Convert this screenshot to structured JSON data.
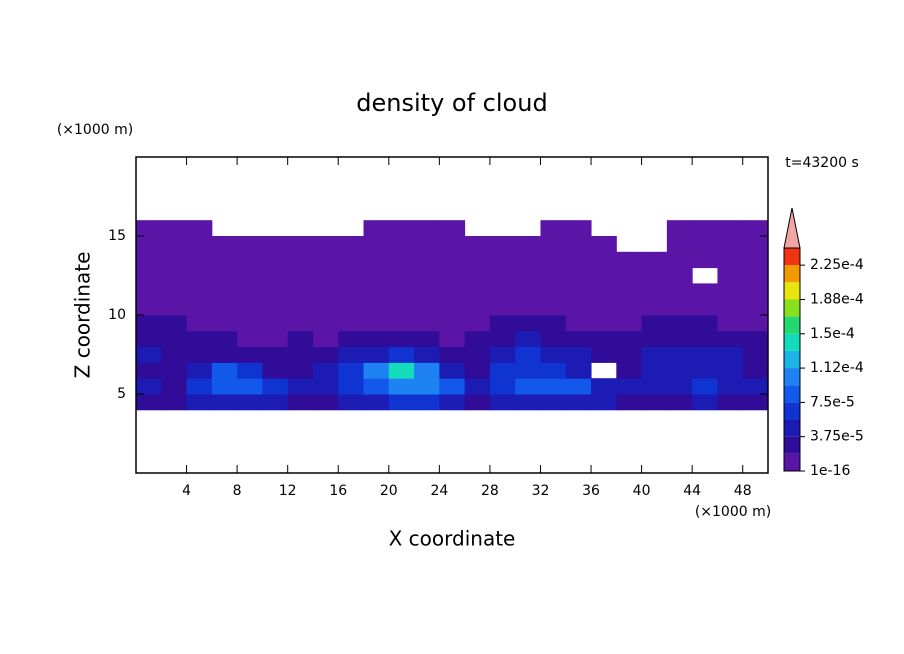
{
  "chart_data": {
    "type": "contourf",
    "title": "density of cloud",
    "x_label": "X coordinate",
    "y_label": "Z coordinate",
    "x_unit": "(×1000 m)",
    "y_unit": "(×1000 m)",
    "time_label": "t=43200 s",
    "xlim": [
      0,
      50
    ],
    "ylim": [
      0,
      20
    ],
    "xticks": [
      4,
      8,
      12,
      16,
      20,
      24,
      28,
      32,
      36,
      40,
      44,
      48
    ],
    "yticks": [
      5,
      10,
      15
    ],
    "x": [
      1,
      3,
      5,
      7,
      9,
      11,
      13,
      15,
      17,
      19,
      21,
      23,
      25,
      27,
      29,
      31,
      33,
      35,
      37,
      39,
      41,
      43,
      45,
      47,
      49
    ],
    "y": [
      4.5,
      5.5,
      6.5,
      7.5,
      8.5,
      9.5,
      10.5,
      11.5,
      12.5,
      13.5,
      14.5,
      15.5
    ],
    "z": [
      [
        3e-05,
        3e-05,
        4e-05,
        5e-05,
        5e-05,
        4e-05,
        3e-05,
        3e-05,
        4e-05,
        5e-05,
        6e-05,
        6e-05,
        5e-05,
        3e-05,
        4e-05,
        5e-05,
        5e-05,
        5e-05,
        4e-05,
        3e-05,
        3e-05,
        3e-05,
        4e-05,
        3e-05,
        3e-05
      ],
      [
        4e-05,
        3e-05,
        7e-05,
        9e-05,
        9e-05,
        6e-05,
        4e-05,
        4e-05,
        6e-05,
        9e-05,
        0.00011,
        0.0001,
        8e-05,
        4e-05,
        7e-05,
        9e-05,
        9e-05,
        8e-05,
        5e-05,
        4e-05,
        5e-05,
        5e-05,
        6e-05,
        5e-05,
        4e-05
      ],
      [
        3e-05,
        3e-05,
        5e-05,
        8e-05,
        7e-05,
        3e-05,
        2e-05,
        4e-05,
        6e-05,
        0.00011,
        0.00014,
        0.00011,
        4e-05,
        3e-05,
        6e-05,
        7e-05,
        6e-05,
        5e-05,
        null,
        3e-05,
        4e-05,
        5e-05,
        5e-05,
        4e-05,
        3e-05
      ],
      [
        4e-05,
        3e-05,
        2e-05,
        3e-05,
        2e-05,
        2e-05,
        2e-05,
        3e-05,
        4e-05,
        5e-05,
        6e-05,
        4e-05,
        2e-05,
        3e-05,
        5e-05,
        6e-05,
        5e-05,
        4e-05,
        2e-05,
        3e-05,
        4e-05,
        5e-05,
        4e-05,
        4e-05,
        3e-05
      ],
      [
        3e-05,
        2e-05,
        2e-05,
        2e-05,
        1e-05,
        1e-05,
        2e-05,
        1e-05,
        2e-05,
        3e-05,
        2e-05,
        2e-05,
        1e-05,
        2e-05,
        3e-05,
        4e-05,
        3e-05,
        2e-05,
        2e-05,
        2e-05,
        3e-05,
        3e-05,
        3e-05,
        2e-05,
        2e-05
      ],
      [
        2e-05,
        2e-05,
        1e-05,
        1e-05,
        1e-05,
        1e-05,
        1e-05,
        1e-05,
        1e-05,
        1e-05,
        1e-05,
        1e-05,
        1e-05,
        1e-05,
        2e-05,
        2e-05,
        2e-05,
        1e-05,
        1e-05,
        1e-05,
        2e-05,
        2e-05,
        2e-05,
        1e-05,
        1e-05
      ],
      [
        1e-05,
        1e-05,
        1e-05,
        1e-05,
        1e-05,
        1e-05,
        1e-05,
        1e-06,
        1e-06,
        1e-06,
        1e-05,
        1e-05,
        1e-05,
        1e-05,
        1e-05,
        1e-06,
        1e-06,
        1e-05,
        1e-05,
        1e-05,
        1e-05,
        1e-05,
        1e-05,
        1e-05,
        1e-05
      ],
      [
        1e-06,
        1e-05,
        1e-05,
        1e-05,
        1e-06,
        1e-06,
        1e-05,
        1e-05,
        1e-06,
        1e-06,
        1e-05,
        1e-05,
        1e-05,
        1e-06,
        1e-05,
        1e-05,
        1e-05,
        1e-06,
        1e-06,
        1e-05,
        1e-05,
        1e-06,
        1e-06,
        1e-06,
        1e-06
      ],
      [
        1e-06,
        1e-06,
        1e-06,
        1e-05,
        1e-05,
        1e-06,
        1e-06,
        1e-06,
        1e-05,
        1e-05,
        1e-05,
        1e-06,
        1e-06,
        1e-06,
        1e-06,
        1e-05,
        1e-05,
        1e-05,
        1e-06,
        1e-06,
        1e-06,
        1e-06,
        null,
        1e-06,
        1e-06
      ],
      [
        1e-06,
        1e-06,
        1e-06,
        1e-06,
        1e-05,
        1e-05,
        1e-05,
        1e-06,
        1e-06,
        1e-06,
        1e-06,
        1e-06,
        1e-06,
        1e-06,
        1e-06,
        1e-06,
        1e-06,
        1e-06,
        1e-06,
        1e-06,
        1e-06,
        1e-06,
        1e-06,
        1e-06,
        1e-06
      ],
      [
        1e-06,
        1e-06,
        1e-06,
        1e-06,
        1e-06,
        1e-06,
        1e-06,
        1e-06,
        1e-06,
        1e-06,
        1e-06,
        1e-06,
        1e-06,
        1e-06,
        1e-06,
        1e-06,
        1e-06,
        1e-06,
        1e-06,
        null,
        null,
        1e-06,
        1e-06,
        1e-06,
        1e-06
      ],
      [
        1e-06,
        1e-06,
        1e-06,
        null,
        null,
        null,
        null,
        null,
        null,
        1e-06,
        1e-06,
        1e-06,
        1e-06,
        null,
        null,
        null,
        1e-06,
        1e-06,
        null,
        null,
        null,
        1e-06,
        1e-06,
        1e-06,
        1e-06
      ]
    ],
    "levels": [
      1e-16,
      1.875e-05,
      3.75e-05,
      5.625e-05,
      7.5e-05,
      9.375e-05,
      0.0001125,
      0.00013125,
      0.00015,
      0.00016875,
      0.0001875,
      0.00020625,
      0.000225,
      0.00024375
    ],
    "colors": [
      "#5a14a6",
      "#300c98",
      "#1c1cb4",
      "#1034d2",
      "#1258ea",
      "#1e82f2",
      "#1cb4e6",
      "#12dcbc",
      "#22d870",
      "#88e01e",
      "#e8e40e",
      "#f29a00",
      "#f03414"
    ],
    "extend_color": "#f4a4a4",
    "colorbar_ticks": [
      {
        "value": 1e-16,
        "label": "1e-16"
      },
      {
        "value": 3.75e-05,
        "label": "3.75e-5"
      },
      {
        "value": 7.5e-05,
        "label": "7.5e-5"
      },
      {
        "value": 0.0001125,
        "label": "1.12e-4"
      },
      {
        "value": 0.00015,
        "label": "1.5e-4"
      },
      {
        "value": 0.0001875,
        "label": "1.88e-4"
      },
      {
        "value": 0.000225,
        "label": "2.25e-4"
      }
    ]
  }
}
